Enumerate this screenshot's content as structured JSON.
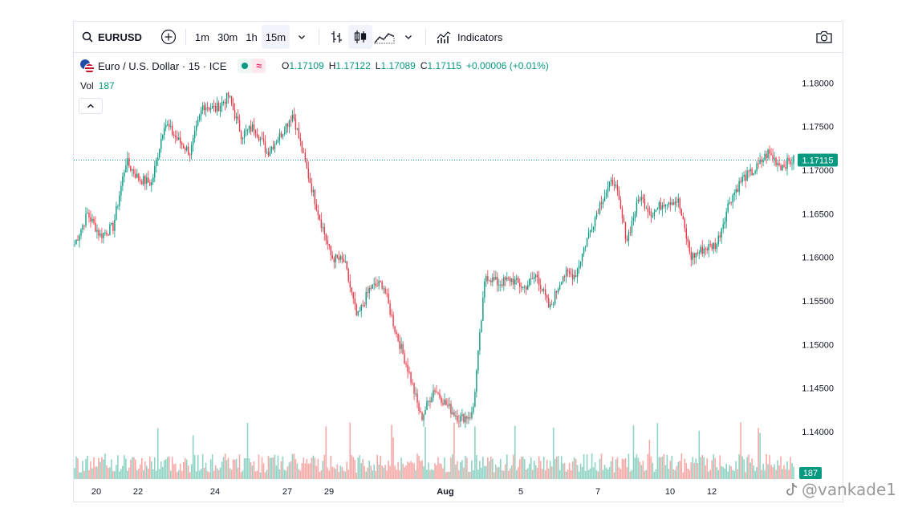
{
  "toolbar": {
    "symbol": "EURUSD",
    "timeframes": [
      "1m",
      "30m",
      "1h",
      "15m"
    ],
    "active_timeframe": "15m",
    "indicators_label": "Indicators",
    "icons": [
      "search-icon",
      "add-symbol-icon",
      "chevron-down-icon",
      "bar-chart-icon",
      "candles-icon",
      "area-chart-icon",
      "chevron-down-icon",
      "indicators-icon",
      "camera-icon"
    ]
  },
  "legend": {
    "title": "Euro / U.S. Dollar · 15 · ICE",
    "open_label": "O",
    "open": "1.17109",
    "high_label": "H",
    "high": "1.17122",
    "low_label": "L",
    "low": "1.17089",
    "close_label": "C",
    "close": "1.17115",
    "change": "+0.00006 (+0.01%)",
    "vol_label": "Vol",
    "vol": "187",
    "wave_glyph": "≈"
  },
  "watermark": "@vankade1",
  "colors": {
    "up": "#089981",
    "down": "#f23645",
    "up_vol": "#8fd3c4",
    "down_vol": "#f7a9a7",
    "price_line": "#089981"
  },
  "chart_data": {
    "type": "candlestick",
    "title": "Euro / U.S. Dollar · 15 · ICE",
    "x_ticks": [
      "20",
      "22",
      "24",
      "27",
      "29",
      "Aug",
      "5",
      "7",
      "10",
      "12"
    ],
    "y_ticks": [
      "1.18000",
      "1.17500",
      "1.17000",
      "1.16500",
      "1.16000",
      "1.15500",
      "1.15000",
      "1.14500",
      "1.14000"
    ],
    "ylim": [
      1.1355,
      1.1815
    ],
    "last_price": "1.17115",
    "last_volume": "187",
    "close_path": [
      [
        "start",
        1.1615
      ],
      [
        "20",
        1.165
      ],
      [
        "21",
        1.1625
      ],
      [
        "22-",
        1.1635
      ],
      [
        "22",
        1.171
      ],
      [
        "22+",
        1.169
      ],
      [
        "23",
        1.1685
      ],
      [
        "23+",
        1.1755
      ],
      [
        "23++",
        1.1735
      ],
      [
        "24-",
        1.172
      ],
      [
        "24",
        1.1775
      ],
      [
        "24+",
        1.177
      ],
      [
        "25",
        1.1785
      ],
      [
        "25+",
        1.174
      ],
      [
        "26",
        1.175
      ],
      [
        "27-",
        1.172
      ],
      [
        "27",
        1.174
      ],
      [
        "27+",
        1.1765
      ],
      [
        "28-",
        1.1705
      ],
      [
        "28",
        1.165
      ],
      [
        "28+",
        1.16
      ],
      [
        "29",
        1.1595
      ],
      [
        "29+",
        1.153
      ],
      [
        "30",
        1.1565
      ],
      [
        "30+",
        1.157
      ],
      [
        "31-",
        1.1515
      ],
      [
        "31",
        1.147
      ],
      [
        "31+",
        1.1415
      ],
      [
        "Aug1-",
        1.145
      ],
      [
        "Aug1",
        1.143
      ],
      [
        "Aug1+",
        1.1415
      ],
      [
        "Aug1++",
        1.142
      ],
      [
        "Aug2",
        1.158
      ],
      [
        "Aug2+",
        1.157
      ],
      [
        "4",
        1.1575
      ],
      [
        "4+",
        1.1565
      ],
      [
        "5",
        1.158
      ],
      [
        "5+",
        1.154
      ],
      [
        "6",
        1.158
      ],
      [
        "6+",
        1.158
      ],
      [
        "7-",
        1.1625
      ],
      [
        "7",
        1.1665
      ],
      [
        "7+",
        1.169
      ],
      [
        "8",
        1.162
      ],
      [
        "8+",
        1.167
      ],
      [
        "9",
        1.165
      ],
      [
        "9+",
        1.1665
      ],
      [
        "10",
        1.1665
      ],
      [
        "10+",
        1.16
      ],
      [
        "11",
        1.161
      ],
      [
        "12-",
        1.1615
      ],
      [
        "12",
        1.1665
      ],
      [
        "12+",
        1.169
      ],
      [
        "13",
        1.17
      ],
      [
        "13+",
        1.172
      ],
      [
        "14",
        1.1705
      ],
      [
        "end",
        1.17115
      ]
    ]
  }
}
